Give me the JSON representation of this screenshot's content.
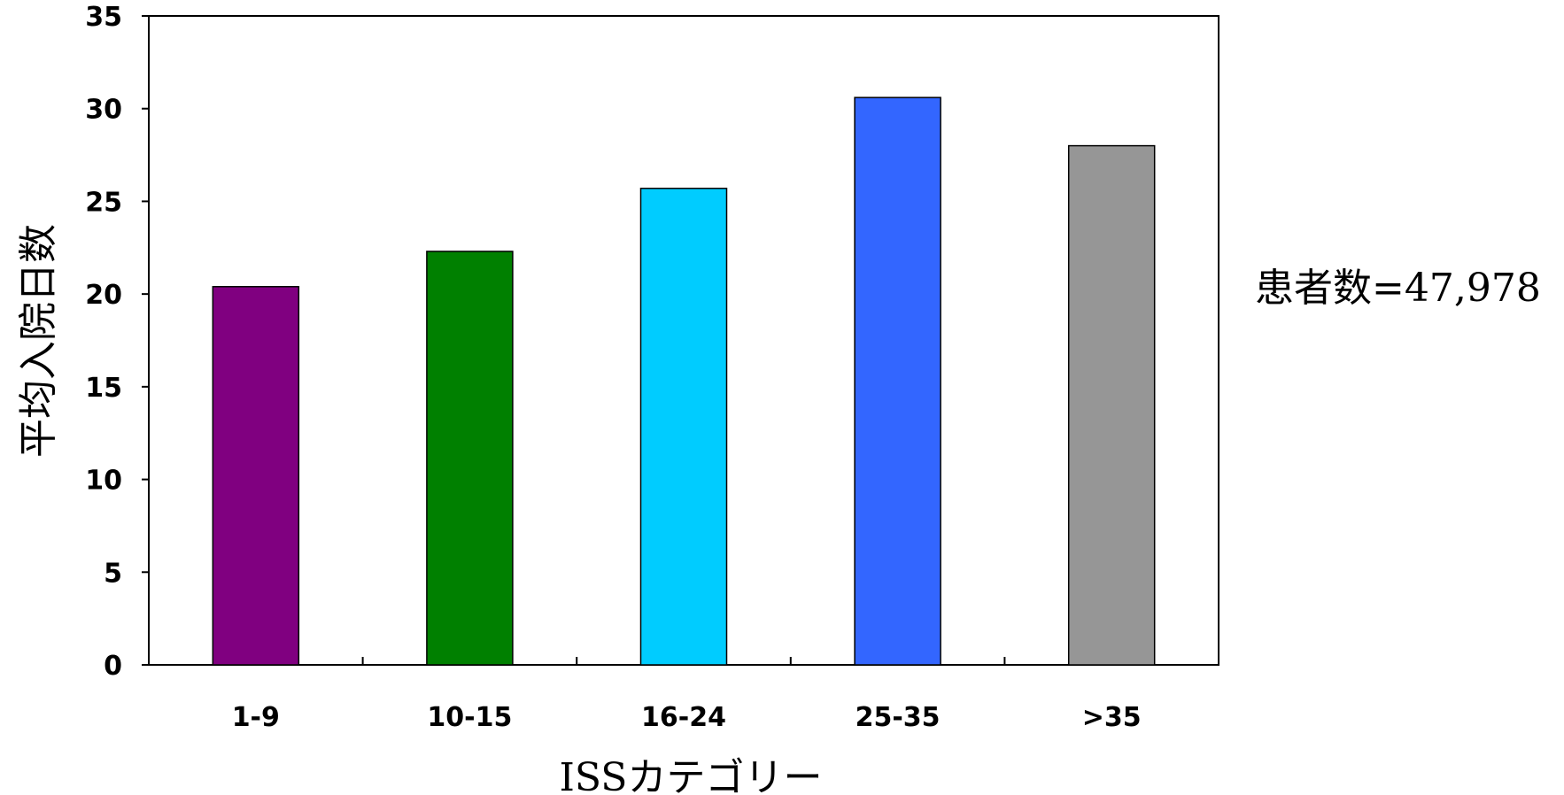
{
  "chart_data": {
    "type": "bar",
    "categories": [
      "1-9",
      "10-15",
      "16-24",
      "25-35",
      ">35"
    ],
    "values": [
      20.4,
      22.3,
      25.7,
      30.6,
      28.0
    ],
    "bar_colors": [
      "#800080",
      "#008000",
      "#00CCFF",
      "#3366FF",
      "#969696"
    ],
    "xlabel": "ISSカテゴリー",
    "ylabel": "平均入院日数",
    "ylim": [
      0,
      35
    ],
    "yticks": [
      0,
      5,
      10,
      15,
      20,
      25,
      30,
      35
    ],
    "grid": false,
    "legend": "none",
    "annotation": "患者数=47,978"
  }
}
